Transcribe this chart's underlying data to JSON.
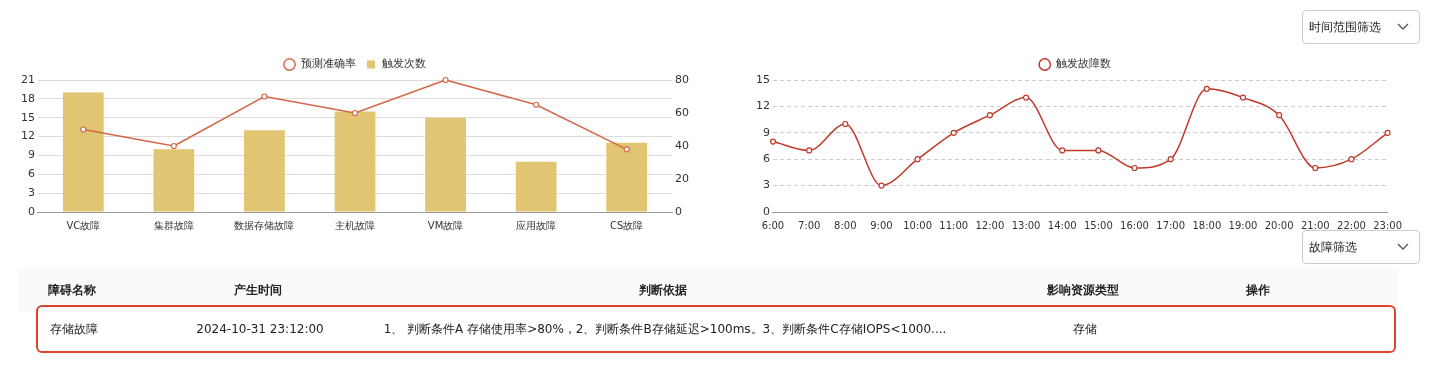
{
  "chart_data": [
    {
      "type": "bar",
      "categories": [
        "VC故障",
        "集群故障",
        "数据存储故障",
        "主机故障",
        "VM故障",
        "应用故障",
        "CS故障"
      ],
      "series": [
        {
          "name": "预测准确率",
          "type": "line",
          "axis": "y2",
          "color": "#d4694a",
          "values": [
            50,
            40,
            70,
            60,
            80,
            65,
            38
          ]
        },
        {
          "name": "触发次数",
          "type": "bar",
          "color": "#e2c572",
          "values": [
            19,
            10,
            13,
            16,
            15,
            8,
            11
          ]
        }
      ],
      "ylim": [
        0,
        21
      ],
      "yticks": [
        0,
        3,
        6,
        9,
        12,
        15,
        18,
        21
      ],
      "y2lim": [
        0,
        80
      ],
      "y2ticks": [
        0,
        20,
        40,
        60,
        80
      ],
      "grid": "y",
      "legend": "top",
      "marker": "circle"
    },
    {
      "type": "line",
      "categories": [
        "6:00",
        "7:00",
        "8:00",
        "9:00",
        "10:00",
        "11:00",
        "12:00",
        "13:00",
        "14:00",
        "15:00",
        "16:00",
        "17:00",
        "18:00",
        "19:00",
        "20:00",
        "21:00",
        "22:00",
        "23:00"
      ],
      "series": [
        {
          "name": "触发故障数",
          "color": "#c0392b",
          "values": [
            8,
            7,
            10,
            3,
            6,
            9,
            11,
            13,
            7,
            7,
            5,
            6,
            14,
            13,
            11,
            5,
            6,
            9
          ]
        }
      ],
      "ylim": [
        0,
        15
      ],
      "yticks": [
        0,
        3,
        6,
        9,
        12,
        15
      ],
      "grid": "y",
      "legend": "top",
      "marker": "circle",
      "annotations": [
        "时间范围筛选"
      ]
    },
    {
      "type": "other",
      "title": "故障筛选",
      "categories": [
        "障碍名称",
        "产生时间",
        "判断依据",
        "影响资源类型",
        "操作"
      ],
      "annotations": [
        "存储故障",
        "2024-10-31  23:12:00",
        "1、 判断条件A 存储使用率>80%，2、判断条件B存储延迟>100ms。3、判断条件C存储IOPS<1000....",
        "存储"
      ]
    }
  ]
}
